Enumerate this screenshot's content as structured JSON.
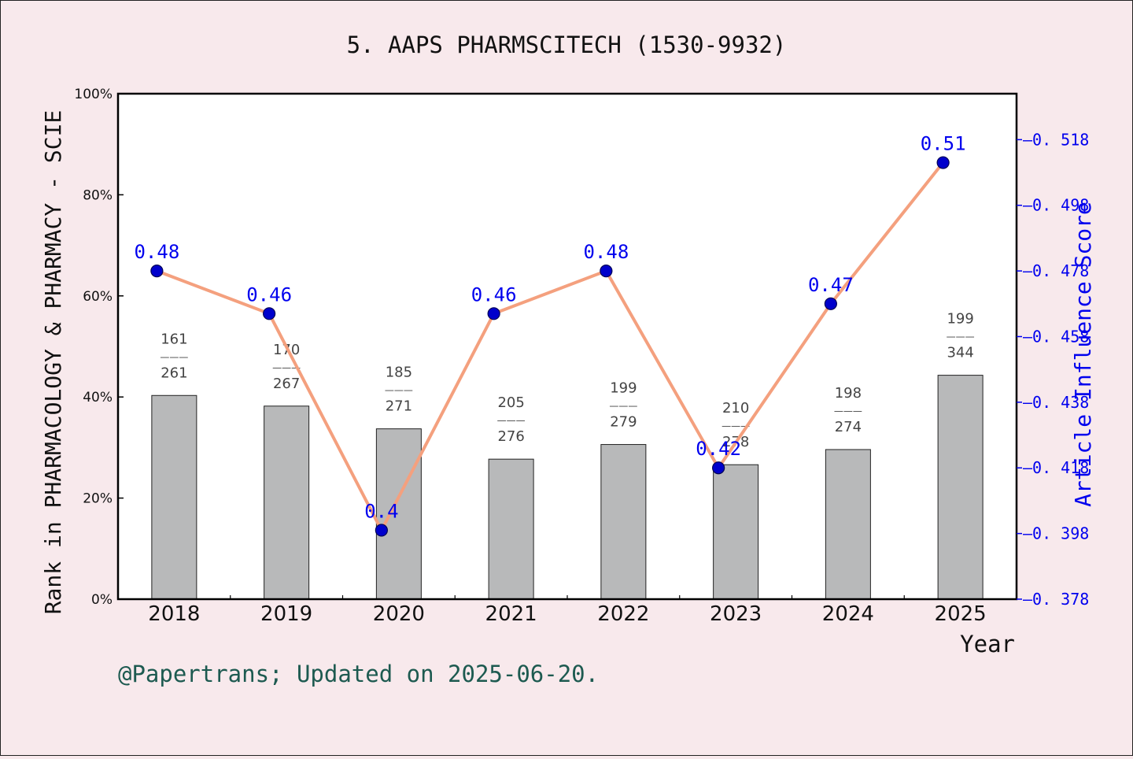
{
  "footer": {
    "text": "@Papertrans; Updated on 2025-06-20."
  },
  "colors": {
    "background": "#f8e9ec",
    "bar": "#b8b9ba",
    "line": "#f4a07e",
    "marker": "#0000cc",
    "right_axis": "#0000ee",
    "footer": "#1d5a50"
  },
  "chart_data": {
    "type": "bar",
    "title": "5. AAPS PHARMSCITECH (1530-9932)",
    "xlabel": "Year",
    "ylabel": "Rank in PHARMACOLOGY & PHARMACY - SCIE",
    "y2label": "Article Influence Score",
    "categories": [
      "2018",
      "2019",
      "2020",
      "2021",
      "2022",
      "2023",
      "2024",
      "2025"
    ],
    "ylim": [
      0,
      100
    ],
    "yticks": [
      "0%",
      "20%",
      "40%",
      "60%",
      "80%",
      "100%"
    ],
    "y2lim": [
      0.378,
      0.532
    ],
    "y2ticks": [
      "0.378",
      "0.398",
      "0.418",
      "0.438",
      "0.458",
      "0.478",
      "0.498",
      "0.518"
    ],
    "grid": false,
    "series": [
      {
        "type": "bar",
        "axis": "left",
        "values": [
          40.3,
          38.2,
          33.7,
          27.7,
          30.6,
          26.6,
          29.6,
          44.3
        ],
        "rank_labels": [
          {
            "rank": "161",
            "total": "261"
          },
          {
            "rank": "170",
            "total": "267"
          },
          {
            "rank": "185",
            "total": "271"
          },
          {
            "rank": "205",
            "total": "276"
          },
          {
            "rank": "199",
            "total": "279"
          },
          {
            "rank": "210",
            "total": "278"
          },
          {
            "rank": "198",
            "total": "274"
          },
          {
            "rank": "199",
            "total": "344"
          }
        ]
      },
      {
        "type": "line",
        "axis": "right",
        "values": [
          0.478,
          0.465,
          0.399,
          0.465,
          0.478,
          0.418,
          0.468,
          0.511
        ],
        "labels": [
          "0.48",
          "0.46",
          "0.4",
          "0.46",
          "0.48",
          "0.42",
          "0.47",
          "0.51"
        ]
      }
    ]
  }
}
